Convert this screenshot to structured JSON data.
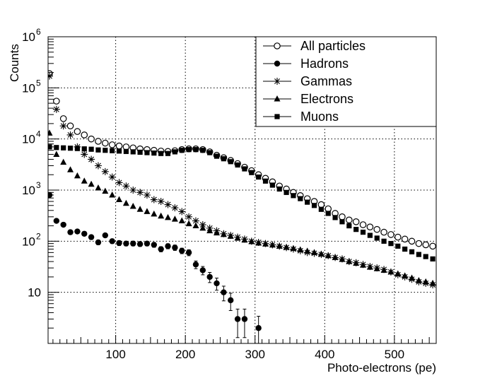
{
  "chart_data": {
    "type": "scatter",
    "title": "",
    "xlabel": "Photo-electrons (pe)",
    "ylabel": "Counts",
    "xlim": [
      3,
      560
    ],
    "ylim": [
      1,
      1000000
    ],
    "y_scale": "log",
    "grid": true,
    "legend_position": "top-right",
    "x_ticks": [
      {
        "value": 100,
        "label": "100"
      },
      {
        "value": 200,
        "label": "200"
      },
      {
        "value": 300,
        "label": "300"
      },
      {
        "value": 400,
        "label": "400"
      },
      {
        "value": 500,
        "label": "500"
      }
    ],
    "y_ticks": [
      {
        "value": 10,
        "base": "10",
        "exp": ""
      },
      {
        "value": 100,
        "base": "10",
        "exp": "2"
      },
      {
        "value": 1000,
        "base": "10",
        "exp": "3"
      },
      {
        "value": 10000,
        "base": "10",
        "exp": "4"
      },
      {
        "value": 100000,
        "base": "10",
        "exp": "5"
      },
      {
        "value": 1000000,
        "base": "10",
        "exp": "6"
      }
    ],
    "series": [
      {
        "name": "All particles",
        "marker": "open-circle",
        "x": [
          5,
          15,
          25,
          35,
          45,
          55,
          65,
          75,
          85,
          95,
          105,
          115,
          125,
          135,
          145,
          155,
          165,
          175,
          185,
          195,
          205,
          215,
          225,
          235,
          245,
          255,
          265,
          275,
          285,
          295,
          305,
          315,
          325,
          335,
          345,
          355,
          365,
          375,
          385,
          395,
          405,
          415,
          425,
          435,
          445,
          455,
          465,
          475,
          485,
          495,
          505,
          515,
          525,
          535,
          545,
          555
        ],
        "y": [
          190000,
          55000,
          25000,
          18000,
          14000,
          12000,
          10000,
          9000,
          8300,
          7700,
          7300,
          7000,
          6700,
          6400,
          6200,
          6000,
          5800,
          5700,
          5900,
          6200,
          6400,
          6400,
          6200,
          5600,
          4800,
          4300,
          3800,
          3300,
          2800,
          2400,
          2000,
          1700,
          1450,
          1200,
          1050,
          900,
          780,
          680,
          600,
          520,
          430,
          350,
          300,
          260,
          240,
          210,
          190,
          170,
          150,
          135,
          120,
          110,
          100,
          90,
          85,
          80
        ],
        "y_err": []
      },
      {
        "name": "Hadrons",
        "marker": "filled-circle",
        "x": [
          5,
          15,
          25,
          35,
          45,
          55,
          65,
          75,
          85,
          95,
          105,
          115,
          125,
          135,
          145,
          155,
          165,
          175,
          185,
          195,
          205,
          215,
          225,
          235,
          245,
          255,
          265,
          275,
          285,
          295,
          305
        ],
        "y": [
          800,
          250,
          210,
          150,
          155,
          140,
          120,
          95,
          130,
          100,
          92,
          90,
          90,
          88,
          90,
          85,
          70,
          80,
          75,
          65,
          60,
          35,
          27,
          20,
          15,
          10,
          7,
          3,
          3,
          0,
          2
        ],
        "y_err": [
          40,
          15,
          14,
          12,
          12,
          12,
          11,
          10,
          11,
          10,
          10,
          9,
          9,
          9,
          9,
          9,
          8,
          9,
          9,
          8,
          8,
          6,
          5,
          4.5,
          4,
          3.2,
          2.6,
          1.7,
          1.7,
          0,
          1.4
        ]
      },
      {
        "name": "Gammas",
        "marker": "asterisk",
        "x": [
          5,
          15,
          25,
          35,
          45,
          55,
          65,
          75,
          85,
          95,
          105,
          115,
          125,
          135,
          145,
          155,
          165,
          175,
          185,
          195,
          205,
          215,
          225,
          235,
          245,
          255,
          265,
          275,
          285,
          295,
          305,
          315,
          325,
          335,
          345,
          355,
          365,
          375,
          385,
          395,
          405,
          415,
          425,
          435,
          445,
          455,
          465,
          475,
          485,
          495,
          505,
          515,
          525,
          535,
          545,
          555
        ],
        "y": [
          170000,
          38000,
          18000,
          12000,
          7000,
          5000,
          4000,
          3000,
          2300,
          1800,
          1400,
          1200,
          1000,
          900,
          800,
          650,
          600,
          520,
          450,
          380,
          300,
          250,
          210,
          180,
          160,
          140,
          130,
          120,
          110,
          100,
          95,
          90,
          85,
          80,
          75,
          70,
          65,
          60,
          58,
          55,
          52,
          48,
          45,
          40,
          38,
          35,
          32,
          30,
          28,
          25,
          22,
          20,
          18,
          16,
          15,
          14
        ],
        "y_err": []
      },
      {
        "name": "Electrons",
        "marker": "filled-triangle",
        "x": [
          5,
          15,
          25,
          35,
          45,
          55,
          65,
          75,
          85,
          95,
          105,
          115,
          125,
          135,
          145,
          155,
          165,
          175,
          185,
          195,
          205,
          215,
          225,
          235,
          245,
          255,
          265,
          275,
          285,
          295,
          305,
          315,
          325,
          335,
          345,
          355,
          365,
          375,
          385,
          395,
          405,
          415,
          425,
          435,
          445,
          455,
          465,
          475,
          485,
          495,
          505,
          515,
          525,
          535,
          545,
          555
        ],
        "y": [
          13000,
          5000,
          3500,
          2500,
          1900,
          1500,
          1300,
          1100,
          950,
          800,
          650,
          550,
          480,
          420,
          380,
          340,
          310,
          290,
          270,
          250,
          220,
          200,
          180,
          160,
          145,
          135,
          125,
          115,
          105,
          98,
          92,
          88,
          84,
          80,
          76,
          72,
          68,
          64,
          60,
          56,
          52,
          48,
          44,
          40,
          37,
          34,
          31,
          29,
          27,
          25,
          23,
          21,
          19,
          17,
          16,
          15
        ],
        "y_err": []
      },
      {
        "name": "Muons",
        "marker": "filled-square",
        "x": [
          5,
          15,
          25,
          35,
          45,
          55,
          65,
          75,
          85,
          95,
          105,
          115,
          125,
          135,
          145,
          155,
          165,
          175,
          185,
          195,
          205,
          215,
          225,
          235,
          245,
          255,
          265,
          275,
          285,
          295,
          305,
          315,
          325,
          335,
          345,
          355,
          365,
          375,
          385,
          395,
          405,
          415,
          425,
          435,
          445,
          455,
          465,
          475,
          485,
          495,
          505,
          515,
          525,
          535,
          545,
          555
        ],
        "y": [
          7000,
          6800,
          6700,
          6600,
          6500,
          6400,
          6300,
          6100,
          6000,
          5900,
          5800,
          5700,
          5600,
          5500,
          5400,
          5300,
          5200,
          5200,
          5600,
          6000,
          6200,
          6200,
          6000,
          5400,
          4600,
          4100,
          3600,
          3100,
          2600,
          2200,
          1800,
          1500,
          1250,
          1050,
          900,
          780,
          680,
          580,
          500,
          420,
          350,
          290,
          240,
          200,
          170,
          150,
          130,
          115,
          100,
          90,
          80,
          70,
          62,
          55,
          50,
          45
        ],
        "y_err": []
      }
    ]
  }
}
